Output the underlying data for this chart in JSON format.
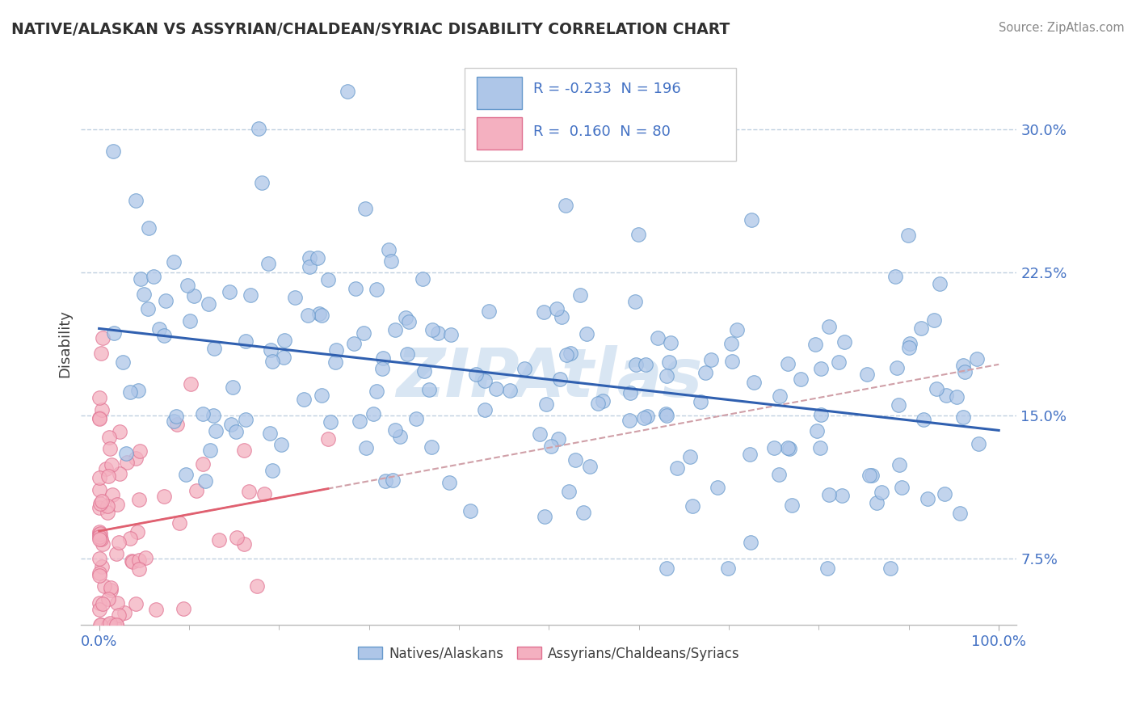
{
  "title": "NATIVE/ALASKAN VS ASSYRIAN/CHALDEAN/SYRIAC DISABILITY CORRELATION CHART",
  "source": "Source: ZipAtlas.com",
  "ylabel": "Disability",
  "xlabel": "",
  "xlim": [
    -0.02,
    1.02
  ],
  "ylim": [
    0.04,
    0.335
  ],
  "yticks": [
    0.075,
    0.15,
    0.225,
    0.3
  ],
  "ytick_labels": [
    "7.5%",
    "15.0%",
    "22.5%",
    "30.0%"
  ],
  "xtick_labels_left": [
    "0.0%"
  ],
  "xtick_labels_right": [
    "100.0%"
  ],
  "series1_color": "#aec6e8",
  "series1_edge": "#6699cc",
  "series1_label": "Natives/Alaskans",
  "series1_R": "-0.233",
  "series1_N": "196",
  "series2_color": "#f4b0c0",
  "series2_edge": "#e07090",
  "series2_label": "Assyrians/Chaldeans/Syriacs",
  "series2_R": "0.160",
  "series2_N": "80",
  "trend1_color": "#3060b0",
  "trend1_style": "solid",
  "trend2_color": "#e06070",
  "trend2_style": "solid",
  "trend2b_color": "#d0a0a8",
  "trend2b_style": "dashed",
  "background_color": "#ffffff",
  "grid_color": "#c0d0e0",
  "title_color": "#303030",
  "axis_label_color": "#4472c4",
  "legend_color": "#4472c4",
  "watermark_text": "ZIPAtlas",
  "watermark_color": "#d0e0f0",
  "n1": 196,
  "n2": 80,
  "seed1": 42,
  "seed2": 7
}
